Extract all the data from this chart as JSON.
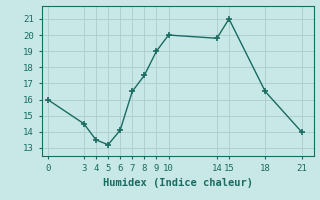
{
  "x": [
    0,
    3,
    4,
    5,
    6,
    7,
    8,
    9,
    10,
    14,
    15,
    18,
    21
  ],
  "y": [
    16,
    14.5,
    13.5,
    13.2,
    14.1,
    16.5,
    17.5,
    19,
    20,
    19.8,
    21,
    16.5,
    14
  ],
  "line_color": "#1a6b60",
  "marker": "+",
  "marker_size": 5,
  "marker_lw": 1.2,
  "bg_color": "#c8e8e8",
  "grid_color": "#b0d0d0",
  "xlabel": "Humidex (Indice chaleur)",
  "xlim": [
    -0.5,
    22
  ],
  "ylim": [
    12.5,
    21.8
  ],
  "xticks": [
    0,
    3,
    4,
    5,
    6,
    7,
    8,
    9,
    10,
    14,
    15,
    18,
    21
  ],
  "yticks": [
    13,
    14,
    15,
    16,
    17,
    18,
    19,
    20,
    21
  ],
  "xlabel_fontsize": 7.5,
  "tick_fontsize": 6.5,
  "line_width": 1.0
}
